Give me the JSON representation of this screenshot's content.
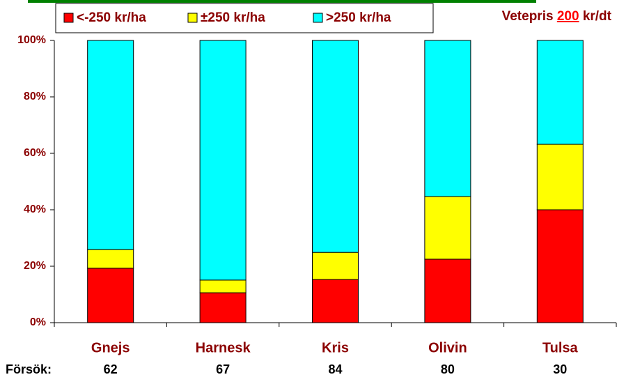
{
  "chart_data": {
    "type": "stacked_bar",
    "categories": [
      "Gnejs",
      "Harnesk",
      "Kris",
      "Olivin",
      "Tulsa"
    ],
    "series": [
      {
        "name": "<-250 kr/ha",
        "color": "#ff0000",
        "values": [
          19.3,
          10.6,
          15.3,
          22.5,
          40
        ]
      },
      {
        "name": "±250 kr/ha",
        "color": "#ffff00",
        "values": [
          6.6,
          4.5,
          9.6,
          22.2,
          23.2
        ]
      },
      {
        "name": ">250 kr/ha",
        "color": "#00ffff",
        "values": [
          74.1,
          84.9,
          75.1,
          55.3,
          36.8
        ]
      }
    ],
    "ylim": [
      0,
      100
    ],
    "yticks": [
      {
        "value": 0,
        "label": "0%"
      },
      {
        "value": 20,
        "label": "20%"
      },
      {
        "value": 40,
        "label": "40%"
      },
      {
        "value": 60,
        "label": "60%"
      },
      {
        "value": 80,
        "label": "80%"
      },
      {
        "value": 100,
        "label": "100%"
      }
    ],
    "legend": "top",
    "price_note": {
      "prefix": "Vetepris",
      "value": 200,
      "suffix": "kr/dt"
    },
    "trial_label": "Försök:",
    "trial_counts": [
      62,
      67,
      84,
      80,
      30
    ]
  }
}
